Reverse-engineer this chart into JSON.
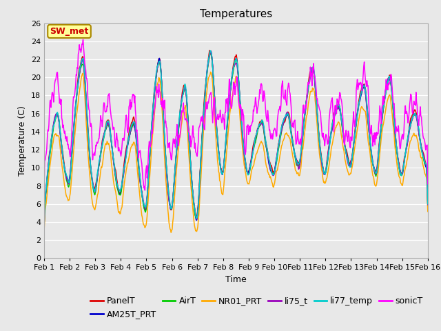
{
  "title": "Temperatures",
  "xlabel": "Time",
  "ylabel": "Temperature (C)",
  "ylim": [
    0,
    26
  ],
  "yticks": [
    0,
    2,
    4,
    6,
    8,
    10,
    12,
    14,
    16,
    18,
    20,
    22,
    24,
    26
  ],
  "xlim": [
    0,
    15
  ],
  "xtick_labels": [
    "Feb 1",
    "Feb 2",
    "Feb 3",
    "Feb 4",
    "Feb 5",
    "Feb 6",
    "Feb 7",
    "Feb 8",
    "Feb 9",
    "Feb 10",
    "Feb 11",
    "Feb 12",
    "Feb 13",
    "Feb 14",
    "Feb 15",
    "Feb 16"
  ],
  "xtick_positions": [
    0,
    1,
    2,
    3,
    4,
    5,
    6,
    7,
    8,
    9,
    10,
    11,
    12,
    13,
    14,
    15
  ],
  "series_names": [
    "PanelT",
    "AM25T_PRT",
    "AirT",
    "NR01_PRT",
    "li75_t",
    "li77_temp",
    "sonicT"
  ],
  "series_colors": [
    "#dd0000",
    "#0000cc",
    "#00cc00",
    "#ffaa00",
    "#9900bb",
    "#00cccc",
    "#ff00ff"
  ],
  "annotation_text": "SW_met",
  "annotation_color": "#cc0000",
  "annotation_bg": "#ffff99",
  "annotation_border": "#aa8800",
  "title_fontsize": 11,
  "axes_fontsize": 9,
  "tick_fontsize": 8,
  "legend_fontsize": 9,
  "bg_color": "#e8e8e8"
}
